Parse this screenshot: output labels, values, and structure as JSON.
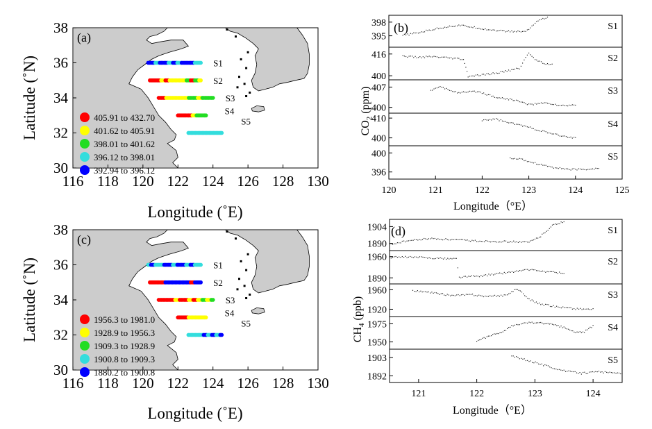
{
  "chart_data": [
    {
      "type": "scatter",
      "id": "panel-a",
      "panel_label": "(a)",
      "xlabel": "Longitude (˚E)",
      "ylabel": "Latitude (˚N)",
      "xlim": [
        116,
        130
      ],
      "ylim": [
        30,
        38
      ],
      "xticks": [
        "116",
        "118",
        "120",
        "122",
        "124",
        "126",
        "128",
        "130"
      ],
      "yticks": [
        "30",
        "32",
        "34",
        "36",
        "38"
      ],
      "legend": [
        {
          "label": "405.91  to  432.70",
          "color": "#ff0000"
        },
        {
          "label": "401.62  to  405.91",
          "color": "#ffff00"
        },
        {
          "label": "398.01  to  401.62",
          "color": "#22dd22"
        },
        {
          "label": "396.12  to  398.01",
          "color": "#33dddd"
        },
        {
          "label": "392.94  to  396.12",
          "color": "#0000ff"
        }
      ],
      "tracks": [
        {
          "name": "S1",
          "lat": 36,
          "lon_start": 120.3,
          "lon_end": 123.3,
          "colors": [
            "#0000ff",
            "#0000ff",
            "#33dddd",
            "#0000ff",
            "#0000ff",
            "#33dddd",
            "#0000ff",
            "#33dddd",
            "#0000ff",
            "#0000ff",
            "#0000ff",
            "#33dddd",
            "#33dddd"
          ]
        },
        {
          "name": "S2",
          "lat": 35,
          "lon_start": 120.4,
          "lon_end": 123.3,
          "colors": [
            "#ff0000",
            "#ff0000",
            "#ff0000",
            "#ffff00",
            "#ff0000",
            "#ffff00",
            "#ffff00",
            "#ffff00",
            "#ffff00",
            "#22dd22",
            "#ff0000",
            "#22dd22",
            "#ffff00"
          ]
        },
        {
          "name": "S3",
          "lat": 34,
          "lon_start": 120.9,
          "lon_end": 124.0,
          "colors": [
            "#ff0000",
            "#ff0000",
            "#ffff00",
            "#ffff00",
            "#ffff00",
            "#ffff00",
            "#ffff00",
            "#22dd22",
            "#22dd22",
            "#ffff00",
            "#22dd22",
            "#22dd22",
            "#22dd22"
          ]
        },
        {
          "name": "S4",
          "lat": 33,
          "lon_start": 122.0,
          "lon_end": 123.6,
          "colors": [
            "#ff0000",
            "#ff0000",
            "#ff0000",
            "#ff0000",
            "#ffff00",
            "#22dd22",
            "#22dd22",
            "#22dd22"
          ]
        },
        {
          "name": "S5",
          "lat": 32,
          "lon_start": 122.6,
          "lon_end": 124.5,
          "colors": [
            "#33dddd",
            "#33dddd",
            "#33dddd",
            "#33dddd",
            "#33dddd",
            "#33dddd",
            "#33dddd",
            "#33dddd",
            "#33dddd"
          ]
        }
      ]
    },
    {
      "type": "line",
      "id": "panel-b",
      "panel_label": "(b)",
      "xlabel": "Longitude（°E）",
      "ylabel": "CO2 (ppm)",
      "xlim": [
        120,
        125
      ],
      "xticks": [
        "120",
        "121",
        "122",
        "123",
        "124",
        "125"
      ],
      "series": [
        {
          "name": "S1",
          "ylim": [
            392.5,
            399.5
          ],
          "yticks": [
            "398",
            "395"
          ],
          "x": [
            120.3,
            120.6,
            120.9,
            121.2,
            121.5,
            121.8,
            122.1,
            122.5,
            122.9,
            123.0,
            123.1,
            123.2,
            123.4
          ],
          "y": [
            395.1,
            395.6,
            396.3,
            396.9,
            397.3,
            396.9,
            396.4,
            396.0,
            395.9,
            396.4,
            397.5,
            398.4,
            399.0
          ]
        },
        {
          "name": "S2",
          "ylim": [
            397,
            421
          ],
          "yticks": [
            "416",
            "400"
          ],
          "x": [
            120.3,
            120.6,
            120.9,
            121.3,
            121.6,
            121.65,
            121.7,
            122.0,
            122.4,
            122.8,
            123.0,
            123.1,
            123.3,
            123.5
          ],
          "y": [
            414.5,
            413.5,
            414.0,
            413.0,
            412.0,
            406.0,
            399.5,
            400.5,
            402.5,
            405.5,
            417.0,
            413.0,
            409.5,
            408.0
          ]
        },
        {
          "name": "S3",
          "ylim": [
            398,
            409.5
          ],
          "yticks": [
            "407",
            "400"
          ],
          "x": [
            120.9,
            121.1,
            121.5,
            121.9,
            122.3,
            122.7,
            123.0,
            123.4,
            123.7,
            124.0
          ],
          "y": [
            406.0,
            407.0,
            405.0,
            405.5,
            403.5,
            402.5,
            401.0,
            401.5,
            400.5,
            400.8
          ]
        },
        {
          "name": "S4",
          "ylim": [
            396,
            412.5
          ],
          "yticks": [
            "410",
            "400"
          ],
          "x": [
            122.0,
            122.3,
            122.6,
            122.9,
            123.2,
            123.5,
            123.8,
            124.0
          ],
          "y": [
            409.0,
            409.5,
            407.5,
            406.0,
            404.0,
            402.0,
            400.5,
            400.0
          ]
        },
        {
          "name": "S5",
          "ylim": [
            394.5,
            401.5
          ],
          "yticks": [
            "400",
            "396"
          ],
          "x": [
            122.6,
            122.9,
            123.2,
            123.5,
            123.8,
            124.1,
            124.5
          ],
          "y": [
            399.0,
            398.5,
            397.7,
            397.0,
            396.6,
            396.5,
            396.7
          ]
        }
      ]
    },
    {
      "type": "scatter",
      "id": "panel-c",
      "panel_label": "(c)",
      "xlabel": "Longitude (˚E)",
      "ylabel": "Latitude (˚N)",
      "xlim": [
        116,
        130
      ],
      "ylim": [
        30,
        38
      ],
      "xticks": [
        "116",
        "118",
        "120",
        "122",
        "124",
        "126",
        "128",
        "130"
      ],
      "yticks": [
        "30",
        "32",
        "34",
        "36",
        "38"
      ],
      "legend": [
        {
          "label": "1956.3  to  1981.0",
          "color": "#ff0000"
        },
        {
          "label": "1928.9  to  1956.3",
          "color": "#ffff00"
        },
        {
          "label": "1909.3  to  1928.9",
          "color": "#22dd22"
        },
        {
          "label": "1900.8  to  1909.3",
          "color": "#33dddd"
        },
        {
          "label": "1880.2  to  1900.8",
          "color": "#0000ff"
        }
      ],
      "tracks": [
        {
          "name": "S1",
          "lat": 36,
          "lon_start": 120.3,
          "lon_end": 123.3,
          "colors": [
            "#33dddd",
            "#0000ff",
            "#33dddd",
            "#33dddd",
            "#0000ff",
            "#0000ff",
            "#33dddd",
            "#0000ff",
            "#0000ff",
            "#33dddd",
            "#0000ff",
            "#33dddd",
            "#33dddd"
          ]
        },
        {
          "name": "S2",
          "lat": 35,
          "lon_start": 120.4,
          "lon_end": 123.3,
          "colors": [
            "#ff0000",
            "#ff0000",
            "#ff0000",
            "#ff0000",
            "#0000ff",
            "#0000ff",
            "#0000ff",
            "#0000ff",
            "#0000ff",
            "#0000ff",
            "#ff0000",
            "#0000ff",
            "#0000ff"
          ]
        },
        {
          "name": "S3",
          "lat": 34,
          "lon_start": 120.9,
          "lon_end": 124.0,
          "colors": [
            "#ff0000",
            "#ff0000",
            "#ff0000",
            "#ff0000",
            "#ffff00",
            "#ff0000",
            "#ff0000",
            "#ffff00",
            "#ff0000",
            "#ffff00",
            "#22dd22",
            "#ffff00",
            "#22dd22"
          ]
        },
        {
          "name": "S4",
          "lat": 33,
          "lon_start": 122.0,
          "lon_end": 123.6,
          "colors": [
            "#ff0000",
            "#ff0000",
            "#ff0000",
            "#ffff00",
            "#ffff00",
            "#ffff00",
            "#ffff00",
            "#ffff00"
          ]
        },
        {
          "name": "S5",
          "lat": 32,
          "lon_start": 122.6,
          "lon_end": 124.5,
          "colors": [
            "#33dddd",
            "#33dddd",
            "#33dddd",
            "#33dddd",
            "#0000ff",
            "#33dddd",
            "#0000ff",
            "#33dddd",
            "#0000ff"
          ]
        }
      ]
    },
    {
      "type": "line",
      "id": "panel-d",
      "panel_label": "(d)",
      "xlabel": "Longitude（°E）",
      "ylabel": "CH4 (ppb)",
      "xlim": [
        120.5,
        124.5
      ],
      "xticks": [
        "121",
        "122",
        "123",
        "124"
      ],
      "series": [
        {
          "name": "S1",
          "ylim": [
            1884,
            1910
          ],
          "yticks": [
            "1904",
            "1890"
          ],
          "x": [
            120.5,
            120.8,
            121.2,
            121.6,
            122.0,
            122.5,
            122.9,
            123.1,
            123.3,
            123.5
          ],
          "y": [
            1889.0,
            1892.0,
            1894.0,
            1893.0,
            1892.0,
            1891.5,
            1891.0,
            1896.0,
            1905.0,
            1908.0
          ]
        },
        {
          "name": "S2",
          "ylim": [
            1870,
            1980
          ],
          "yticks": [
            "1960",
            "1890"
          ],
          "x": [
            120.5,
            120.8,
            121.1,
            121.4,
            121.65,
            121.7,
            122.1,
            122.5,
            122.9,
            123.0,
            123.5
          ],
          "y": [
            1958.0,
            1958.5,
            1957.0,
            1954.0,
            1953.0,
            1892.0,
            1897.0,
            1907.0,
            1917.0,
            1914.0,
            1905.0
          ]
        },
        {
          "name": "S3",
          "ylim": [
            1905,
            1972
          ],
          "yticks": [
            "1960",
            "1920"
          ],
          "x": [
            120.9,
            121.2,
            121.6,
            121.9,
            122.2,
            122.5,
            122.7,
            122.9,
            123.1,
            123.4,
            123.7,
            124.0
          ],
          "y": [
            1958.0,
            1954.0,
            1948.0,
            1950.0,
            1946.0,
            1949.0,
            1962.0,
            1940.0,
            1930.0,
            1925.0,
            1921.0,
            1920.0
          ]
        },
        {
          "name": "S4",
          "ylim": [
            1940,
            1985
          ],
          "yticks": [
            "1975",
            "1950"
          ],
          "x": [
            122.0,
            122.2,
            122.4,
            122.6,
            122.9,
            123.1,
            123.3,
            123.5,
            123.7,
            123.85,
            124.0
          ],
          "y": [
            1950.0,
            1958.0,
            1962.0,
            1972.0,
            1977.0,
            1976.0,
            1974.0,
            1970.0,
            1963.0,
            1964.0,
            1972.0
          ]
        },
        {
          "name": "S5",
          "ylim": [
            1888,
            1908
          ],
          "yticks": [
            "1903",
            "1892"
          ],
          "x": [
            122.6,
            122.9,
            123.2,
            123.5,
            123.8,
            124.1,
            124.5
          ],
          "y": [
            1904.0,
            1901.0,
            1898.0,
            1895.0,
            1893.5,
            1894.5,
            1893.0
          ]
        }
      ]
    }
  ],
  "land": {
    "coast_fill": "#cccccc",
    "coast_stroke": "#000000"
  }
}
